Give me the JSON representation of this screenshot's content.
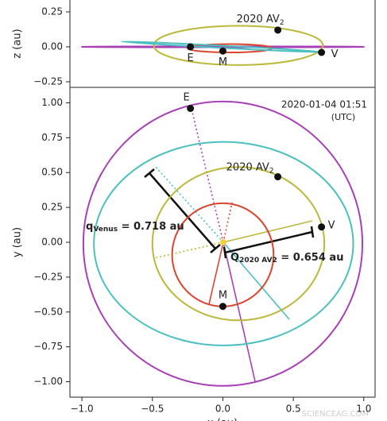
{
  "chart_data": [
    {
      "type": "orbit",
      "ylabel": "z (au)",
      "xlim": [
        -1.085,
        1.08
      ],
      "ylim": [
        -0.29,
        0.335
      ],
      "yticks": [
        {
          "value": 0.25,
          "label": "0.25"
        },
        {
          "value": 0,
          "label": "0.00"
        },
        {
          "value": -0.25,
          "label": "−0.25"
        }
      ],
      "orbits": [
        {
          "color": "#a640b4",
          "cx": 0,
          "cy": 0,
          "rx": 1.0,
          "ry": 0.003,
          "angle": 0
        },
        {
          "color": "#bcb83a",
          "cx": 0.11,
          "cy": 0.01,
          "rx": 0.6,
          "ry": 0.14,
          "angle": 0
        },
        {
          "color": "#d8462e",
          "cx": 0.05,
          "cy": -0.01,
          "rx": 0.3,
          "ry": 0.03,
          "angle": 0
        },
        {
          "color": "#4cbfc0",
          "cx": 0,
          "cy": 0,
          "rx": 0.72,
          "ry": 0.008,
          "angle": 3
        }
      ],
      "points": [
        {
          "label": "2020 AV",
          "sub": "2",
          "x": 0.39,
          "y": 0.12
        },
        {
          "label": "E",
          "x": -0.23,
          "y": 0.0
        },
        {
          "label": "M",
          "x": 0.0,
          "y": -0.03
        },
        {
          "label": "V",
          "x": 0.7,
          "y": -0.04
        }
      ]
    },
    {
      "type": "orbit",
      "ylabel": "y (au)",
      "xlabel": "x (au)",
      "xlim": [
        -1.085,
        1.08
      ],
      "ylim": [
        -1.111,
        1.111
      ],
      "xticks": [
        {
          "value": -1,
          "label": "−1.0"
        },
        {
          "value": -0.5,
          "label": "−0.5"
        },
        {
          "value": 0,
          "label": "0.0"
        },
        {
          "value": 0.5,
          "label": "0.5"
        },
        {
          "value": 1,
          "label": "1.0"
        }
      ],
      "yticks": [
        {
          "value": 1,
          "label": "1.00"
        },
        {
          "value": 0.75,
          "label": "0.75"
        },
        {
          "value": 0.5,
          "label": "0.50"
        },
        {
          "value": 0.25,
          "label": "0.25"
        },
        {
          "value": 0,
          "label": "0.00"
        },
        {
          "value": -0.25,
          "label": "−0.25"
        },
        {
          "value": -0.5,
          "label": "−0.50"
        },
        {
          "value": -0.75,
          "label": "−0.75"
        },
        {
          "value": -1,
          "label": "−1.00"
        }
      ],
      "timestamp": "2020-01-04 01:51",
      "timezone": "(UTC)",
      "orbits": [
        {
          "color": "#a640b4",
          "cx": 0,
          "cy": -0.01,
          "rx": 0.99,
          "ry": 1.02,
          "angle": 0
        },
        {
          "color": "#4cbfc0",
          "cx": 0.005,
          "cy": -0.01,
          "rx": 0.92,
          "ry": 0.73,
          "angle": 0
        },
        {
          "color": "#bcb83a",
          "cx": 0.11,
          "cy": -0.01,
          "rx": 0.61,
          "ry": 0.55,
          "angle": 0
        },
        {
          "color": "#d8462e",
          "cx": 0.0,
          "cy": -0.09,
          "rx": 0.36,
          "ry": 0.37,
          "angle": 0
        }
      ],
      "points": [
        {
          "label": "E",
          "x": -0.23,
          "y": 0.96
        },
        {
          "label": "2020 AV",
          "sub": "2",
          "x": 0.39,
          "y": 0.47
        },
        {
          "label": "V",
          "x": 0.7,
          "y": 0.11
        },
        {
          "label": "M",
          "x": 0.0,
          "y": -0.46
        }
      ],
      "annotations": [
        {
          "main": "q",
          "sub": "Venus",
          "rest": " = 0.718 au"
        },
        {
          "main": "Q",
          "sub": "2020 AV2",
          "rest": " = 0.654 au"
        }
      ]
    }
  ],
  "watermark": "SCIENCEAG.COM"
}
